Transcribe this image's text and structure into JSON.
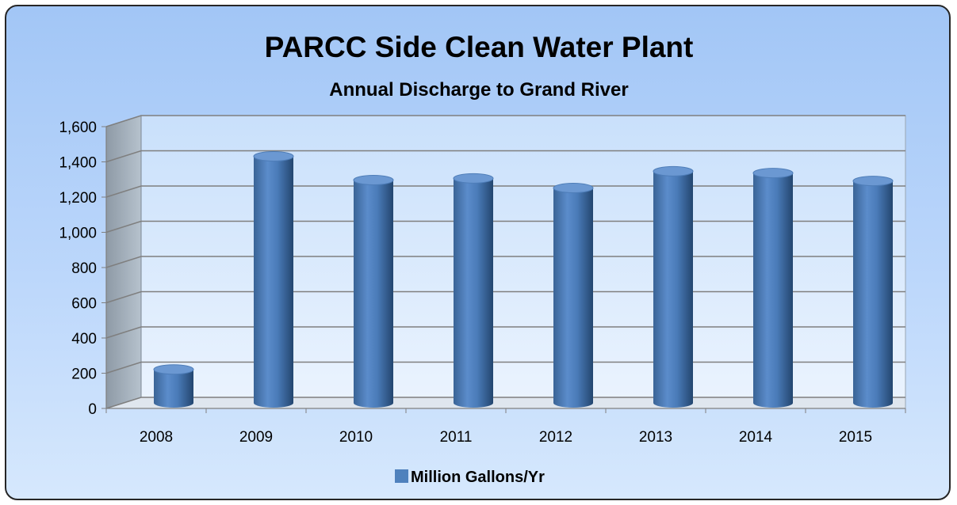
{
  "chart_data": {
    "type": "bar",
    "title": "PARCC Side Clean Water Plant",
    "subtitle": "Annual Discharge to Grand River",
    "categories": [
      "2008",
      "2009",
      "2010",
      "2011",
      "2012",
      "2013",
      "2014",
      "2015"
    ],
    "series": [
      {
        "name": "Million Gallons/Yr",
        "values": [
          190,
          1400,
          1265,
          1275,
          1220,
          1315,
          1305,
          1260
        ],
        "color": "#4f81bd"
      }
    ],
    "y_ticks": [
      "0",
      "200",
      "400",
      "600",
      "800",
      "1,000",
      "1,200",
      "1,400",
      "1,600"
    ],
    "ylim": [
      0,
      1600
    ],
    "grid": true,
    "legend_position": "bottom",
    "style": "3d-cylinder"
  }
}
